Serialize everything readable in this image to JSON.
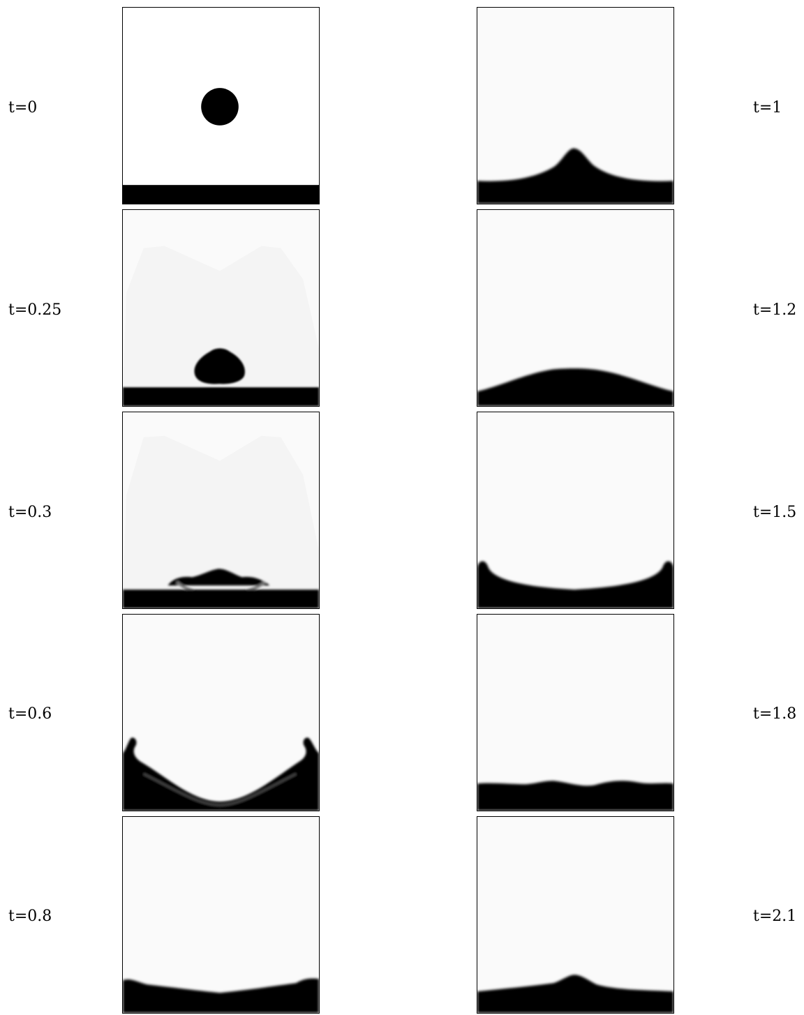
{
  "frames": [
    {
      "label": "t=0"
    },
    {
      "label": "t=0.25"
    },
    {
      "label": "t=0.3"
    },
    {
      "label": "t=0.6"
    },
    {
      "label": "t=0.8"
    },
    {
      "label": "t=1"
    },
    {
      "label": "t=1.2"
    },
    {
      "label": "t=1.5"
    },
    {
      "label": "t=1.8"
    },
    {
      "label": "t=2.1"
    }
  ],
  "colors": {
    "fluid": "#000000",
    "background": "#fafafa",
    "mist": "#f4f4f4"
  }
}
